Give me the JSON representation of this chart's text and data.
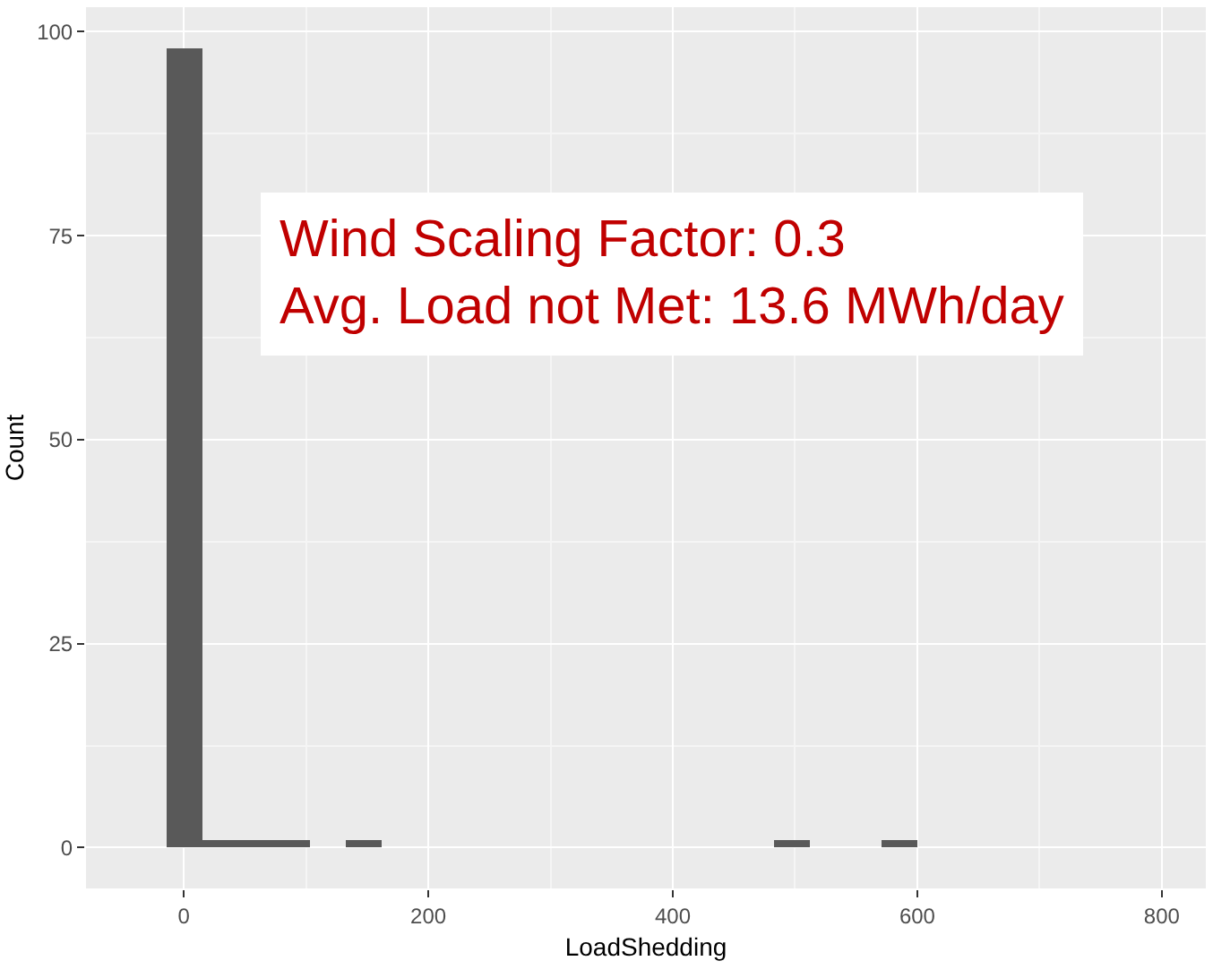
{
  "chart_data": {
    "type": "histogram",
    "bins": [
      -14.7,
      14.6,
      43.9,
      73.2,
      102.5,
      131.8,
      161.1,
      190.4,
      219.7,
      249,
      278.3,
      307.6,
      336.9,
      366.2,
      395.5,
      424.8,
      454.1,
      483.4,
      512.7,
      542,
      571.3,
      600.6
    ],
    "values": [
      98,
      1,
      1,
      1,
      0,
      1,
      0,
      0,
      0,
      0,
      0,
      0,
      0,
      0,
      0,
      0,
      0,
      1,
      0,
      0,
      1
    ],
    "color": "#595959",
    "xlabel": "LoadShedding",
    "ylabel": "Count",
    "xlim": [
      -80,
      836
    ],
    "xticks": [
      0,
      200,
      400,
      600,
      800
    ],
    "ylim": [
      -5,
      103
    ],
    "yticks": [
      0,
      25,
      50,
      75,
      100
    ],
    "grid": true,
    "legend": false,
    "annotations": [
      "Wind Scaling Factor: 0.3\nAvg. Load not Met: 13.6 MWh/day"
    ]
  }
}
